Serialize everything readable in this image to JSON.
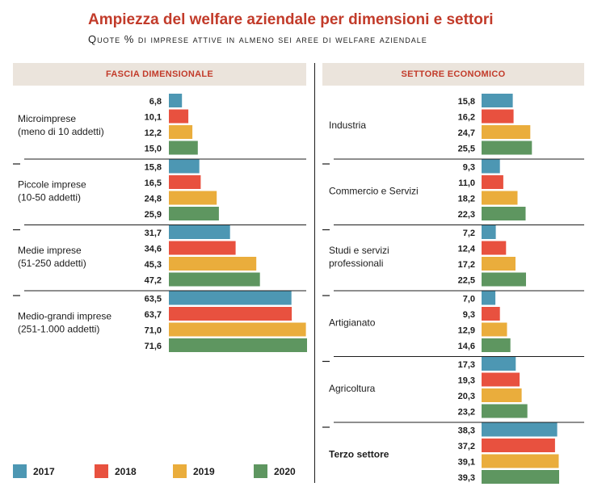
{
  "title": "Ampiezza del welfare aziendale per dimensioni e settori",
  "subtitle": "Quote % di imprese attive in almeno sei aree di welfare aziendale",
  "colors": {
    "2017": "#4d97b3",
    "2018": "#e8513f",
    "2019": "#eaad3c",
    "2020": "#5e9660"
  },
  "chart_data": [
    {
      "type": "bar",
      "title": "FASCIA DIMENSIONALE",
      "series_names": [
        "2017",
        "2018",
        "2019",
        "2020"
      ],
      "xlim": [
        0,
        71.6
      ],
      "groups": [
        {
          "label": [
            "Microimprese",
            "(meno di 10 addetti)"
          ],
          "values": [
            6.8,
            10.1,
            12.2,
            15.0
          ],
          "labels": [
            "6,8",
            "10,1",
            "12,2",
            "15,0"
          ]
        },
        {
          "label": [
            "Piccole imprese",
            "(10-50 addetti)"
          ],
          "values": [
            15.8,
            16.5,
            24.8,
            25.9
          ],
          "labels": [
            "15,8",
            "16,5",
            "24,8",
            "25,9"
          ]
        },
        {
          "label": [
            "Medie imprese",
            "(51-250 addetti)"
          ],
          "values": [
            31.7,
            34.6,
            45.3,
            47.2
          ],
          "labels": [
            "31,7",
            "34,6",
            "45,3",
            "47,2"
          ]
        },
        {
          "label": [
            "Medio-grandi imprese",
            "(251-1.000 addetti)"
          ],
          "values": [
            63.5,
            63.7,
            71.0,
            71.6
          ],
          "labels": [
            "63,5",
            "63,7",
            "71,0",
            "71,6"
          ]
        }
      ]
    },
    {
      "type": "bar",
      "title": "SETTORE ECONOMICO",
      "series_names": [
        "2017",
        "2018",
        "2019",
        "2020"
      ],
      "xlim": [
        0,
        39.3
      ],
      "groups": [
        {
          "label": [
            "Industria"
          ],
          "values": [
            15.8,
            16.2,
            24.7,
            25.5
          ],
          "labels": [
            "15,8",
            "16,2",
            "24,7",
            "25,5"
          ]
        },
        {
          "label": [
            "Commercio e Servizi"
          ],
          "values": [
            9.3,
            11.0,
            18.2,
            22.3
          ],
          "labels": [
            "9,3",
            "11,0",
            "18,2",
            "22,3"
          ]
        },
        {
          "label": [
            "Studi e servizi",
            "professionali"
          ],
          "values": [
            7.2,
            12.4,
            17.2,
            22.5
          ],
          "labels": [
            "7,2",
            "12,4",
            "17,2",
            "22,5"
          ]
        },
        {
          "label": [
            "Artigianato"
          ],
          "values": [
            7.0,
            9.3,
            12.9,
            14.6
          ],
          "labels": [
            "7,0",
            "9,3",
            "12,9",
            "14,6"
          ]
        },
        {
          "label": [
            "Agricoltura"
          ],
          "values": [
            17.3,
            19.3,
            20.3,
            23.2
          ],
          "labels": [
            "17,3",
            "19,3",
            "20,3",
            "23,2"
          ]
        },
        {
          "label": [
            "Terzo settore"
          ],
          "values": [
            38.3,
            37.2,
            39.1,
            39.3
          ],
          "labels": [
            "38,3",
            "37,2",
            "39,1",
            "39,3"
          ]
        }
      ]
    }
  ],
  "legend": [
    {
      "label": "2017",
      "color": "#4d97b3"
    },
    {
      "label": "2018",
      "color": "#e8513f"
    },
    {
      "label": "2019",
      "color": "#eaad3c"
    },
    {
      "label": "2020",
      "color": "#5e9660"
    }
  ]
}
